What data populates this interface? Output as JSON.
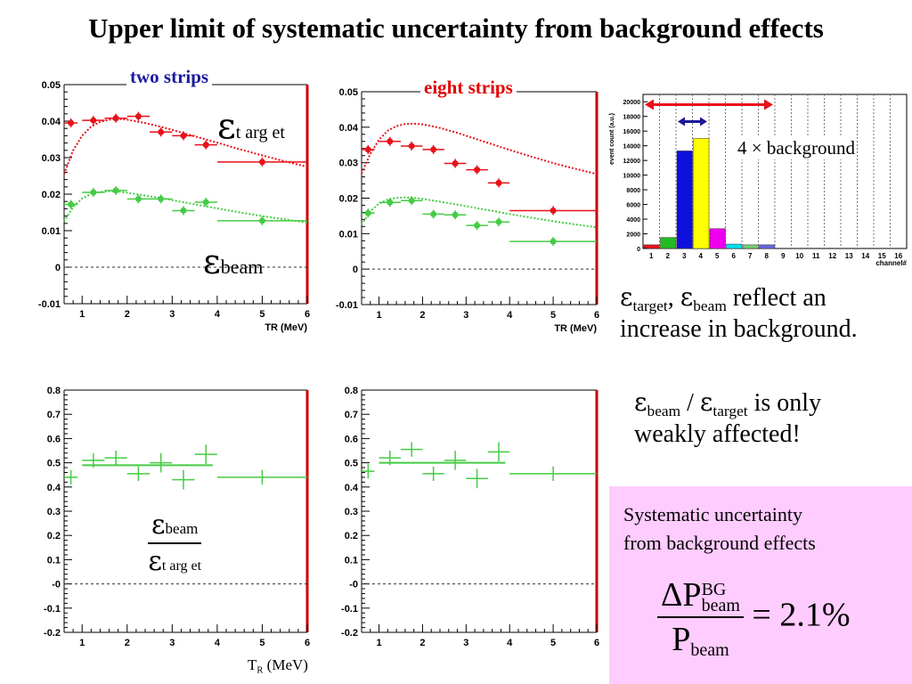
{
  "title": "Upper limit of systematic uncertainty from background effects",
  "labels": {
    "two_strips": "two strips",
    "eight_strips": "eight strips",
    "eps": "ε",
    "target_sub": "t arg et",
    "beam_sub": "beam",
    "target_sub_plain": "target",
    "x_axis_title": "TR (MeV)",
    "bottom_x_label_T": "T",
    "bottom_x_label_R": "R",
    "bottom_x_label_unit": "(MeV)",
    "background_annotation": "4 × background"
  },
  "notes": {
    "note1_line1_suffix": "reflect an",
    "note1_line2": "increase in background.",
    "note2_slash": "/",
    "note2_line1_suffix": "is only",
    "note2_line2": "weakly affected!"
  },
  "summary_box": {
    "line1": "Systematic uncertainty",
    "line2": "from background effects",
    "delta_P": "ΔP",
    "bg": "BG",
    "beam": "beam",
    "equals": "= 2.1%",
    "P": "P"
  },
  "colors": {
    "red": "#e8111a",
    "green": "#44cc44",
    "title_two_strips": "#1a1aa0",
    "title_eight_strips": "#e00000",
    "pink": "#ffccff",
    "panel_edge": "#cc0000"
  },
  "chart_data": [
    {
      "type": "scatter",
      "panel": "two strips — efficiency",
      "xlabel": "TR (MeV)",
      "xlim": [
        0.6,
        6
      ],
      "ylim": [
        -0.01,
        0.05
      ],
      "xticks": [
        1,
        2,
        3,
        4,
        5,
        6
      ],
      "yticks": [
        -0.01,
        0,
        0.01,
        0.02,
        0.03,
        0.04,
        0.05
      ],
      "ytick_labels": [
        "-0.01",
        "0",
        "0.01",
        "0.02",
        "0.03",
        "0.04",
        "0.05"
      ],
      "series": [
        {
          "name": "ε target",
          "color": "red",
          "x": [
            0.75,
            1.25,
            1.75,
            2.25,
            2.75,
            3.25,
            3.75,
            5.0
          ],
          "y": [
            0.0395,
            0.0402,
            0.0408,
            0.0413,
            0.037,
            0.036,
            0.0335,
            0.0288
          ],
          "xerr": [
            0.15,
            0.25,
            0.25,
            0.25,
            0.25,
            0.25,
            0.25,
            1.0
          ]
        },
        {
          "name": "ε beam",
          "color": "green",
          "x": [
            0.75,
            1.25,
            1.75,
            2.25,
            2.75,
            3.25,
            3.75,
            5.0
          ],
          "y": [
            0.0172,
            0.0205,
            0.021,
            0.0187,
            0.0187,
            0.0155,
            0.0178,
            0.0127
          ],
          "xerr": [
            0.15,
            0.25,
            0.25,
            0.25,
            0.25,
            0.25,
            0.25,
            1.0
          ]
        }
      ],
      "curves": [
        {
          "color": "red",
          "x": [
            0.6,
            0.8,
            1.0,
            1.2,
            1.4,
            1.6,
            1.8,
            2.0,
            2.4,
            2.8,
            3.2,
            3.6,
            4.0,
            4.5,
            5.0,
            5.5,
            6.0
          ],
          "y": [
            0.0255,
            0.032,
            0.036,
            0.0385,
            0.0398,
            0.0404,
            0.0406,
            0.0404,
            0.0395,
            0.0383,
            0.0369,
            0.0355,
            0.0341,
            0.0323,
            0.0306,
            0.029,
            0.0275
          ]
        },
        {
          "color": "green",
          "x": [
            0.6,
            0.8,
            1.0,
            1.2,
            1.4,
            1.6,
            1.8,
            2.0,
            2.4,
            2.8,
            3.2,
            3.6,
            4.0,
            4.5,
            5.0,
            5.5,
            6.0
          ],
          "y": [
            0.0125,
            0.0165,
            0.0188,
            0.0201,
            0.0206,
            0.0208,
            0.0207,
            0.0204,
            0.0196,
            0.0188,
            0.0179,
            0.017,
            0.0161,
            0.015,
            0.014,
            0.0131,
            0.0122
          ]
        }
      ]
    },
    {
      "type": "scatter",
      "panel": "eight strips — efficiency",
      "xlabel": "TR (MeV)",
      "xlim": [
        0.6,
        6
      ],
      "ylim": [
        -0.01,
        0.05
      ],
      "xticks": [
        1,
        2,
        3,
        4,
        5,
        6
      ],
      "yticks": [
        -0.01,
        0,
        0.01,
        0.02,
        0.03,
        0.04,
        0.05
      ],
      "ytick_labels": [
        "-0.01",
        "0",
        "0.01",
        "0.02",
        "0.03",
        "0.04",
        "0.05"
      ],
      "series": [
        {
          "name": "ε target",
          "color": "red",
          "x": [
            0.75,
            1.25,
            1.75,
            2.25,
            2.75,
            3.25,
            3.75,
            5.0
          ],
          "y": [
            0.0337,
            0.036,
            0.0347,
            0.0337,
            0.0298,
            0.028,
            0.0243,
            0.0165
          ],
          "xerr": [
            0.15,
            0.25,
            0.25,
            0.25,
            0.25,
            0.25,
            0.25,
            1.0
          ]
        },
        {
          "name": "ε beam",
          "color": "green",
          "x": [
            0.75,
            1.25,
            1.75,
            2.25,
            2.75,
            3.25,
            3.75,
            5.0
          ],
          "y": [
            0.0158,
            0.0188,
            0.0193,
            0.0155,
            0.0153,
            0.0123,
            0.0133,
            0.0078
          ],
          "xerr": [
            0.15,
            0.25,
            0.25,
            0.25,
            0.25,
            0.25,
            0.25,
            1.0
          ]
        }
      ],
      "curves": [
        {
          "color": "red",
          "x": [
            0.6,
            0.8,
            1.0,
            1.2,
            1.4,
            1.6,
            1.8,
            2.0,
            2.4,
            2.8,
            3.2,
            3.6,
            4.0,
            4.5,
            5.0,
            5.5,
            6.0
          ],
          "y": [
            0.027,
            0.0325,
            0.0365,
            0.039,
            0.0403,
            0.0409,
            0.041,
            0.0408,
            0.0398,
            0.0384,
            0.0368,
            0.0352,
            0.0336,
            0.0317,
            0.0299,
            0.0283,
            0.0268
          ]
        },
        {
          "color": "green",
          "x": [
            0.6,
            0.8,
            1.0,
            1.2,
            1.4,
            1.6,
            1.8,
            2.0,
            2.4,
            2.8,
            3.2,
            3.6,
            4.0,
            4.5,
            5.0,
            5.5,
            6.0
          ],
          "y": [
            0.0125,
            0.0163,
            0.0185,
            0.0196,
            0.0201,
            0.0202,
            0.0201,
            0.0198,
            0.019,
            0.0182,
            0.0173,
            0.0164,
            0.0155,
            0.0145,
            0.0135,
            0.0126,
            0.0118
          ]
        }
      ]
    },
    {
      "type": "scatter",
      "panel": "two strips — ratio ε beam / ε target",
      "xlim": [
        0.6,
        6
      ],
      "ylim": [
        -0.2,
        0.8
      ],
      "xticks": [
        1,
        2,
        3,
        4,
        5,
        6
      ],
      "yticks": [
        -0.2,
        -0.1,
        0,
        0.1,
        0.2,
        0.3,
        0.4,
        0.5,
        0.6,
        0.7,
        0.8
      ],
      "ytick_labels": [
        "-0.2",
        "-0.1",
        "-0",
        "0.1",
        "0.2",
        "0.3",
        "0.4",
        "0.5",
        "0.6",
        "0.7",
        "0.8"
      ],
      "series": [
        {
          "name": "ε beam / ε target",
          "color": "green",
          "x": [
            0.75,
            1.25,
            1.75,
            2.25,
            2.75,
            3.25,
            3.75,
            5.0
          ],
          "y": [
            0.44,
            0.51,
            0.52,
            0.455,
            0.5,
            0.43,
            0.535,
            0.44
          ],
          "xerr": [
            0.15,
            0.25,
            0.25,
            0.25,
            0.25,
            0.25,
            0.25,
            1.0
          ],
          "yerr": [
            0.03,
            0.03,
            0.03,
            0.03,
            0.04,
            0.04,
            0.04,
            0.03
          ]
        }
      ],
      "hline": {
        "y": 0.49,
        "x": [
          1.0,
          3.9
        ]
      }
    },
    {
      "type": "scatter",
      "panel": "eight strips — ratio ε beam / ε target",
      "xlim": [
        0.6,
        6
      ],
      "ylim": [
        -0.2,
        0.8
      ],
      "xticks": [
        1,
        2,
        3,
        4,
        5,
        6
      ],
      "yticks": [
        -0.2,
        -0.1,
        0,
        0.1,
        0.2,
        0.3,
        0.4,
        0.5,
        0.6,
        0.7,
        0.8
      ],
      "ytick_labels": [
        "-0.2",
        "-0.1",
        "-0",
        "0.1",
        "0.2",
        "0.3",
        "0.4",
        "0.5",
        "0.6",
        "0.7",
        "0.8"
      ],
      "series": [
        {
          "name": "ε beam / ε target",
          "color": "green",
          "x": [
            0.75,
            1.25,
            1.75,
            2.25,
            2.75,
            3.25,
            3.75,
            5.0
          ],
          "y": [
            0.465,
            0.52,
            0.555,
            0.455,
            0.51,
            0.435,
            0.545,
            0.455
          ],
          "xerr": [
            0.15,
            0.25,
            0.25,
            0.25,
            0.25,
            0.25,
            0.25,
            1.0
          ],
          "yerr": [
            0.03,
            0.03,
            0.03,
            0.03,
            0.04,
            0.04,
            0.04,
            0.03
          ]
        }
      ],
      "hline": {
        "y": 0.5,
        "x": [
          1.0,
          3.9
        ]
      }
    },
    {
      "type": "bar",
      "panel": "background histogram",
      "ylabel": "event count (a.u.)",
      "xlabel": "channel#",
      "categories": [
        "1",
        "2",
        "3",
        "4",
        "5",
        "6",
        "7",
        "8",
        "9",
        "10",
        "11",
        "12",
        "13",
        "14",
        "15",
        "16"
      ],
      "values": [
        500,
        1500,
        13300,
        15000,
        2700,
        600,
        500,
        500,
        0,
        0,
        0,
        0,
        0,
        0,
        0,
        0
      ],
      "bar_colors": [
        "#e8111a",
        "#22bb22",
        "#1010dd",
        "#ffff00",
        "#ee00ee",
        "#00e0ee",
        "#77cc77",
        "#6666dd",
        "#fff",
        "#fff",
        "#fff",
        "#fff",
        "#fff",
        "#fff",
        "#fff",
        "#fff"
      ],
      "ylim": [
        0,
        21000
      ],
      "yticks": [
        0,
        2000,
        4000,
        6000,
        8000,
        10000,
        12000,
        14000,
        16000,
        18000,
        20000
      ],
      "ytick_labels": [
        "0",
        "2000",
        "4000",
        "6000",
        "8000",
        "10000",
        "12000",
        "14000",
        "16000",
        "18000",
        "20000"
      ],
      "grid": "vertical dashed"
    }
  ]
}
